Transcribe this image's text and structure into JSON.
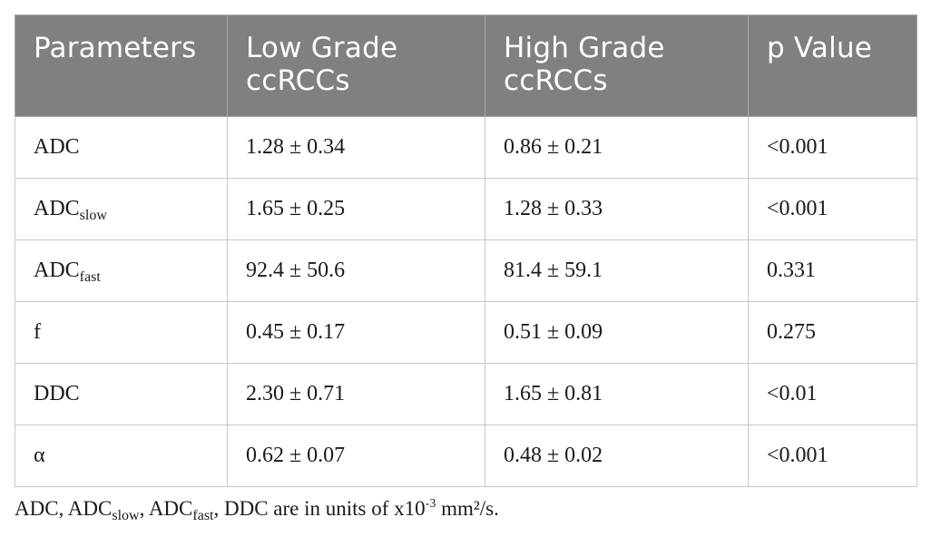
{
  "table": {
    "headers": [
      [
        "Parameters"
      ],
      [
        "Low Grade",
        "ccRCCs"
      ],
      [
        "High Grade",
        "ccRCCs"
      ],
      [
        "p Value"
      ]
    ],
    "rows": [
      {
        "param": {
          "base": "ADC",
          "sub": ""
        },
        "low": "1.28 ± 0.34",
        "high": "0.86 ± 0.21",
        "p": "<0.001"
      },
      {
        "param": {
          "base": "ADC",
          "sub": "slow"
        },
        "low": "1.65 ± 0.25",
        "high": "1.28 ± 0.33",
        "p": "<0.001"
      },
      {
        "param": {
          "base": "ADC",
          "sub": "fast"
        },
        "low": "92.4 ± 50.6",
        "high": "81.4 ± 59.1",
        "p": "0.331"
      },
      {
        "param": {
          "base": "f",
          "sub": ""
        },
        "low": "0.45 ± 0.17",
        "high": "0.51 ± 0.09",
        "p": "0.275"
      },
      {
        "param": {
          "base": "DDC",
          "sub": ""
        },
        "low": "2.30 ± 0.71",
        "high": "1.65 ± 0.81",
        "p": "<0.01"
      },
      {
        "param": {
          "base": "α",
          "sub": ""
        },
        "low": "0.62 ± 0.07",
        "high": "0.48 ± 0.02",
        "p": "<0.001"
      }
    ]
  },
  "footnote": {
    "part1": "ADC, ADC",
    "sub1": "slow",
    "part2": ", ADC",
    "sub2": "fast",
    "part3": ", DDC are in units of x10",
    "sup1": "-3",
    "part4": " mm²/s."
  }
}
